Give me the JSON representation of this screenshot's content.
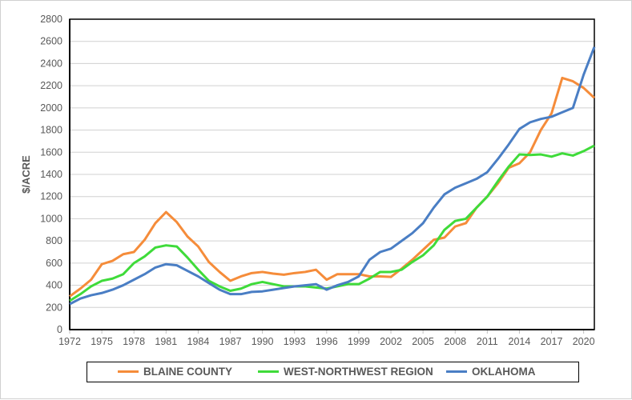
{
  "chart_data": {
    "type": "line",
    "title": "",
    "xlabel": "",
    "ylabel": "$/ACRE",
    "ylim": [
      0,
      2800
    ],
    "xlim": [
      1972,
      2021
    ],
    "yticks": [
      0,
      200,
      400,
      600,
      800,
      1000,
      1200,
      1400,
      1600,
      1800,
      2000,
      2200,
      2400,
      2600,
      2800
    ],
    "xticks": [
      1972,
      1975,
      1978,
      1981,
      1984,
      1987,
      1990,
      1993,
      1996,
      1999,
      2002,
      2005,
      2008,
      2011,
      2014,
      2017,
      2020
    ],
    "grid": "horizontal",
    "legend_position": "bottom",
    "x": [
      1972,
      1973,
      1974,
      1975,
      1976,
      1977,
      1978,
      1979,
      1980,
      1981,
      1982,
      1983,
      1984,
      1985,
      1986,
      1987,
      1988,
      1989,
      1990,
      1991,
      1992,
      1993,
      1994,
      1995,
      1996,
      1997,
      1998,
      1999,
      2000,
      2001,
      2002,
      2003,
      2004,
      2005,
      2006,
      2007,
      2008,
      2009,
      2010,
      2011,
      2012,
      2013,
      2014,
      2015,
      2016,
      2017,
      2018,
      2019,
      2020,
      2021
    ],
    "series": [
      {
        "name": "BLAINE COUNTY",
        "color": "#F58C3A",
        "values": [
          300,
          370,
          450,
          590,
          620,
          680,
          700,
          810,
          960,
          1060,
          970,
          840,
          750,
          610,
          520,
          440,
          480,
          510,
          520,
          505,
          495,
          510,
          520,
          540,
          450,
          500,
          500,
          500,
          480,
          480,
          475,
          550,
          630,
          720,
          810,
          830,
          930,
          960,
          1100,
          1200,
          1320,
          1460,
          1500,
          1600,
          1800,
          1950,
          2270,
          2240,
          2180,
          2090
        ]
      },
      {
        "name": "WEST-NORTHWEST REGION",
        "color": "#3FDB3A",
        "values": [
          260,
          320,
          390,
          440,
          460,
          500,
          600,
          660,
          740,
          760,
          750,
          650,
          540,
          440,
          390,
          350,
          370,
          410,
          430,
          410,
          390,
          390,
          390,
          380,
          370,
          390,
          410,
          410,
          460,
          520,
          520,
          540,
          610,
          670,
          760,
          900,
          980,
          1000,
          1100,
          1200,
          1340,
          1470,
          1580,
          1575,
          1580,
          1560,
          1590,
          1570,
          1610,
          1660
        ]
      },
      {
        "name": "OKLAHOMA",
        "color": "#4A7EC4",
        "values": [
          230,
          280,
          310,
          330,
          360,
          400,
          450,
          500,
          560,
          590,
          580,
          530,
          480,
          420,
          360,
          320,
          320,
          340,
          345,
          360,
          375,
          390,
          400,
          410,
          360,
          400,
          430,
          480,
          630,
          700,
          730,
          800,
          870,
          960,
          1100,
          1220,
          1280,
          1320,
          1360,
          1420,
          1540,
          1670,
          1810,
          1870,
          1900,
          1920,
          1960,
          2000,
          2300,
          2550
        ]
      }
    ]
  }
}
